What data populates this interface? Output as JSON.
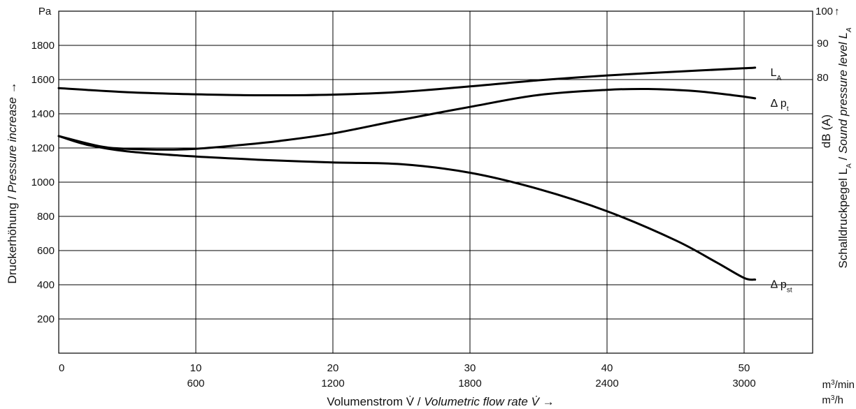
{
  "chart_data": {
    "type": "line",
    "left_axis": {
      "unit": "Pa",
      "label_de": "Druckerhöhung / ",
      "label_en": "Pressure increase →",
      "range": [
        0,
        2000
      ],
      "ticks": [
        200,
        400,
        600,
        800,
        1000,
        1200,
        1400,
        1600,
        1800
      ]
    },
    "right_axis": {
      "unit": "dB (A)",
      "label": "Schalldruckpegel L",
      "label_sub": "A",
      "label_mid": " / ",
      "label_en": "Sound pressure level L",
      "label_en_sub": "A",
      "top_label": "100",
      "top_arrow": "↑",
      "ticks": [
        {
          "label": "90",
          "value": 90
        },
        {
          "label": "80",
          "value": 80
        }
      ],
      "mapping_note": ""
    },
    "x_axis": {
      "range": [
        0,
        55
      ],
      "ticks_primary": [
        "0",
        "10",
        "20",
        "30",
        "40",
        "50"
      ],
      "ticks_primary_values": [
        0,
        10,
        20,
        30,
        40,
        50
      ],
      "ticks_secondary": [
        "600",
        "1200",
        "1800",
        "2400",
        "3000"
      ],
      "unit_primary": "m",
      "unit_primary_sup": "3",
      "unit_primary_suffix": "/min",
      "unit_secondary": "m",
      "unit_secondary_sup": "3",
      "unit_secondary_suffix": "/h",
      "label_prefix": "Volumenstrom V̇ / ",
      "label_en": "Volumetric flow rate V̇ →"
    },
    "grid": true,
    "series": [
      {
        "name": "L",
        "name_sub": "A",
        "axis": "right",
        "x": [
          0,
          5,
          10,
          15,
          20,
          25,
          30,
          35,
          40,
          45,
          50,
          50.8
        ],
        "y": [
          77.5,
          76.3,
          75.7,
          75.4,
          75.6,
          76.4,
          78.0,
          79.8,
          81.2,
          82.3,
          83.3,
          83.5
        ]
      },
      {
        "name": "Δ p",
        "name_sub": "t",
        "axis": "left",
        "x": [
          0,
          3,
          5,
          8,
          10,
          13,
          16,
          20,
          25,
          30,
          35,
          40,
          43,
          46,
          48,
          50,
          50.8
        ],
        "y": [
          1270,
          1210,
          1195,
          1190,
          1195,
          1215,
          1240,
          1285,
          1365,
          1440,
          1510,
          1540,
          1545,
          1535,
          1520,
          1500,
          1490
        ]
      },
      {
        "name": "Δ p",
        "name_sub": "st",
        "axis": "left",
        "x": [
          0,
          2,
          5,
          10,
          15,
          20,
          25,
          30,
          35,
          40,
          45,
          48,
          50,
          50.8
        ],
        "y": [
          1270,
          1220,
          1180,
          1150,
          1130,
          1115,
          1105,
          1055,
          960,
          830,
          660,
          530,
          440,
          430
        ]
      }
    ]
  }
}
